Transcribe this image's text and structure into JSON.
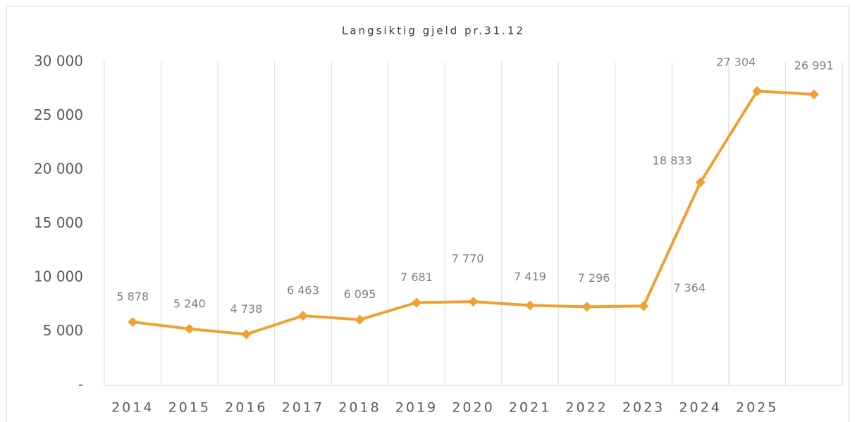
{
  "chart_data": {
    "type": "line",
    "title": "Langsiktig gjeld pr.31.12",
    "categories": [
      "2014",
      "2015",
      "2016",
      "2017",
      "2018",
      "2019",
      "2020",
      "2021",
      "2022",
      "2023",
      "2024",
      "2025",
      null
    ],
    "series": [
      {
        "name": "Langsiktig gjeld",
        "color": "#f0a030",
        "values": [
          5878,
          5240,
          4738,
          6463,
          6095,
          7681,
          7770,
          7419,
          7296,
          7364,
          18833,
          27304,
          26991
        ],
        "value_labels": [
          "5 878",
          "5 240",
          "4 738",
          "6 463",
          "6 095",
          "7 681",
          "7 770",
          "7 419",
          "7 296",
          "7 364",
          "18 833",
          "27 304",
          "26 991"
        ]
      }
    ],
    "ylim": [
      0,
      30000
    ],
    "yticks": [
      {
        "value": 0,
        "label": "-"
      },
      {
        "value": 5000,
        "label": "5 000"
      },
      {
        "value": 10000,
        "label": "10 000"
      },
      {
        "value": 15000,
        "label": "15 000"
      },
      {
        "value": 20000,
        "label": "20 000"
      },
      {
        "value": 25000,
        "label": "25 000"
      },
      {
        "value": 30000,
        "label": "30 000"
      }
    ],
    "grid": "vertical"
  }
}
